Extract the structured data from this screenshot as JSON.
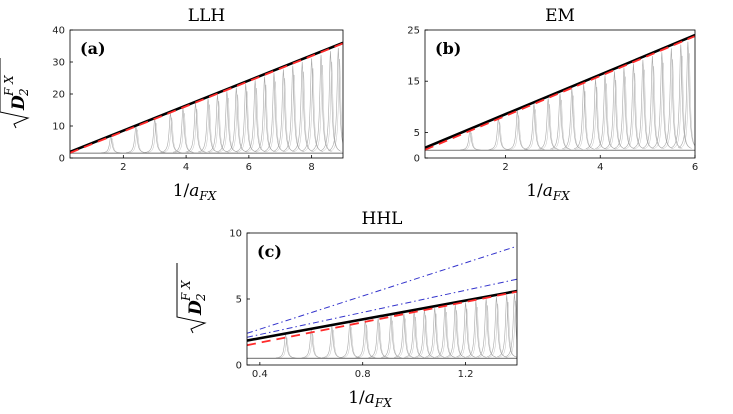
{
  "chart_data": [
    {
      "type": "line",
      "title": "LLH",
      "panel_label": "(a)",
      "xlabel": "1/a_FX",
      "ylabel": "sqrt(D_2^FX)",
      "xlim": [
        0.3,
        9
      ],
      "ylim": [
        0,
        40
      ],
      "xticks": [
        2,
        4,
        6,
        8
      ],
      "yticks": [
        0,
        10,
        20,
        30,
        40
      ],
      "grid": false,
      "reference_lines": [
        {
          "style": "black-solid",
          "color": "#000000",
          "x": [
            0.3,
            9
          ],
          "y": [
            1.9,
            36
          ]
        },
        {
          "style": "red-dashed",
          "color": "#ff2a2a",
          "x": [
            0.3,
            9
          ],
          "y": [
            1.6,
            35.8
          ]
        }
      ],
      "peaks": {
        "x": [
          1.6,
          2.4,
          3.0,
          3.5,
          3.9,
          4.3,
          4.7,
          5.0,
          5.3,
          5.6,
          5.9,
          6.2,
          6.5,
          6.8,
          7.1,
          7.4,
          7.7,
          8.0,
          8.3,
          8.6,
          8.85
        ],
        "baseline": 1.5,
        "color": "#999999"
      }
    },
    {
      "type": "line",
      "title": "EM",
      "panel_label": "(b)",
      "xlabel": "1/a_FX",
      "ylabel": "",
      "xlim": [
        0.3,
        6
      ],
      "ylim": [
        0,
        25
      ],
      "xticks": [
        2,
        4,
        6
      ],
      "yticks": [
        0,
        5,
        15,
        25
      ],
      "grid": false,
      "reference_lines": [
        {
          "style": "black-solid",
          "color": "#000000",
          "x": [
            0.3,
            6
          ],
          "y": [
            2.0,
            24
          ]
        },
        {
          "style": "red-dashed",
          "color": "#ff2a2a",
          "x": [
            0.3,
            6
          ],
          "y": [
            1.6,
            23.8
          ]
        }
      ],
      "peaks": {
        "x": [
          1.25,
          1.85,
          2.25,
          2.6,
          2.9,
          3.15,
          3.4,
          3.65,
          3.9,
          4.1,
          4.3,
          4.5,
          4.7,
          4.9,
          5.1,
          5.3,
          5.5,
          5.7,
          5.85
        ],
        "baseline": 1.5,
        "color": "#999999"
      }
    },
    {
      "type": "line",
      "title": "HHL",
      "panel_label": "(c)",
      "xlabel": "1/a_FX",
      "ylabel": "sqrt(D_2^FX)",
      "xlim": [
        0.35,
        1.4
      ],
      "ylim": [
        0,
        10
      ],
      "xticks": [
        0.4,
        0.8,
        1.2
      ],
      "xtick_labels": [
        "0.4",
        "0.8",
        "1.2"
      ],
      "yticks": [
        0,
        5,
        10
      ],
      "grid": false,
      "reference_lines": [
        {
          "style": "blue-dashdot",
          "color": "#3333cc",
          "x": [
            0.35,
            1.4
          ],
          "y": [
            2.4,
            9.0
          ]
        },
        {
          "style": "blue-dashdot",
          "color": "#3333cc",
          "x": [
            0.35,
            1.4
          ],
          "y": [
            2.1,
            6.5
          ]
        },
        {
          "style": "black-solid",
          "color": "#000000",
          "x": [
            0.35,
            1.4
          ],
          "y": [
            1.85,
            5.6
          ]
        },
        {
          "style": "red-dashed",
          "color": "#ff2a2a",
          "x": [
            0.35,
            1.4
          ],
          "y": [
            1.5,
            5.55
          ]
        }
      ],
      "peaks": {
        "x": [
          0.5,
          0.6,
          0.68,
          0.75,
          0.81,
          0.86,
          0.91,
          0.96,
          1.0,
          1.04,
          1.08,
          1.12,
          1.16,
          1.2,
          1.24,
          1.28,
          1.32,
          1.36,
          1.39
        ],
        "baseline": 0.5,
        "color": "#999999"
      }
    }
  ]
}
